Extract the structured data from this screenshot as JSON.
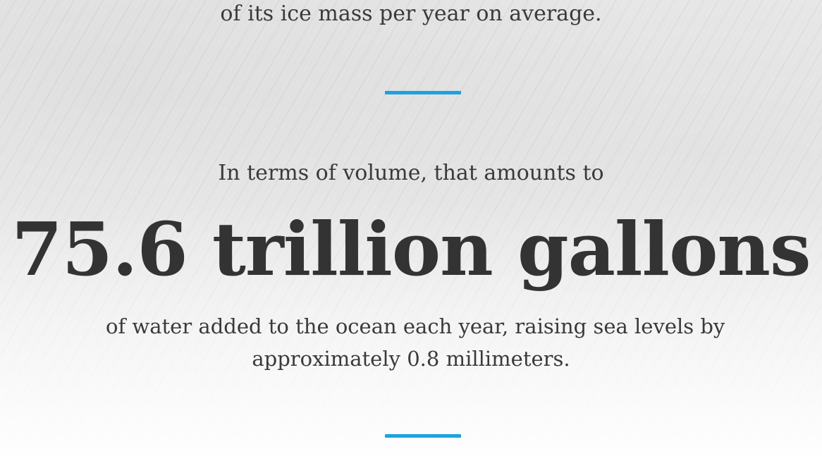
{
  "colors": {
    "accent": "#1aa3df",
    "text": "#333333"
  },
  "top_text": "of its ice mass per year on average.",
  "intro_text": "In terms of volume, that amounts to",
  "headline": "75.6 trillion gallons",
  "body_lines": [
    "of water added to the ocean each year, raising sea levels by",
    "approximately 0.8 millimeters."
  ]
}
